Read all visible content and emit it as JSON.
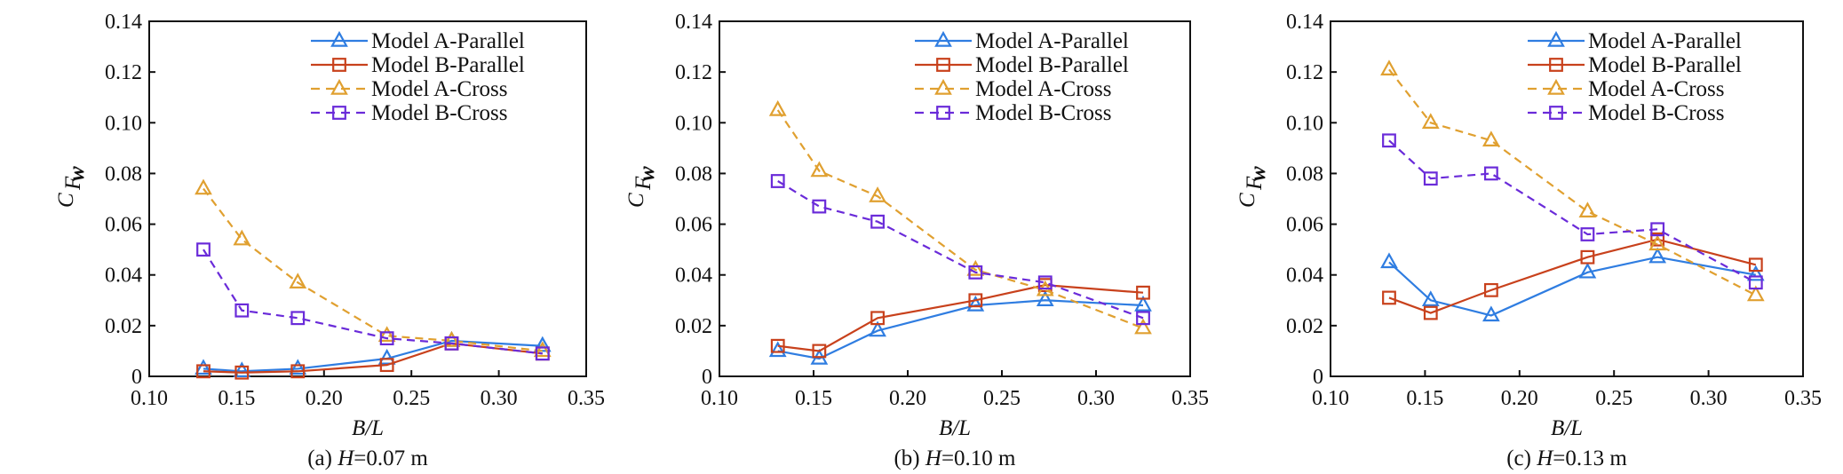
{
  "figure": {
    "series_styles": [
      {
        "name": "Model A-Parallel",
        "color": "#2f7de1",
        "marker": "triangle",
        "dash": "solid"
      },
      {
        "name": "Model B-Parallel",
        "color": "#c8411c",
        "marker": "square",
        "dash": "solid"
      },
      {
        "name": "Model A-Cross",
        "color": "#e0a030",
        "marker": "triangle",
        "dash": "dashed"
      },
      {
        "name": "Model B-Cross",
        "color": "#6a2bd9",
        "marker": "square",
        "dash": "dashed"
      }
    ]
  },
  "chart_data": [
    {
      "type": "line",
      "panel": "a",
      "caption_prefix": "(a)",
      "caption_var": "H",
      "caption_value": "=0.07 m",
      "xlabel": "B/L",
      "ylabel": "C",
      "ylabel_sub": "F",
      "ylabel_subsub": "w",
      "xlim": [
        0.1,
        0.35
      ],
      "ylim": [
        0,
        0.14
      ],
      "xticks": [
        "0.10",
        "0.15",
        "0.20",
        "0.25",
        "0.30",
        "0.35"
      ],
      "yticks": [
        "0",
        "0.02",
        "0.04",
        "0.06",
        "0.08",
        "0.10",
        "0.12",
        "0.14"
      ],
      "legend_position": "top-right",
      "x": [
        0.131,
        0.153,
        0.185,
        0.236,
        0.273,
        0.325
      ],
      "series": [
        {
          "name": "Model A-Parallel",
          "values": [
            0.003,
            0.002,
            0.003,
            0.007,
            0.014,
            0.012
          ]
        },
        {
          "name": "Model B-Parallel",
          "values": [
            0.002,
            0.0015,
            0.002,
            0.0045,
            0.013,
            0.009
          ]
        },
        {
          "name": "Model A-Cross",
          "values": [
            0.074,
            0.054,
            0.037,
            0.016,
            0.014,
            0.01
          ]
        },
        {
          "name": "Model B-Cross",
          "values": [
            0.05,
            0.026,
            0.023,
            0.015,
            0.013,
            0.009
          ]
        }
      ]
    },
    {
      "type": "line",
      "panel": "b",
      "caption_prefix": "(b)",
      "caption_var": "H",
      "caption_value": "=0.10 m",
      "xlabel": "B/L",
      "ylabel": "C",
      "ylabel_sub": "F",
      "ylabel_subsub": "w",
      "xlim": [
        0.1,
        0.35
      ],
      "ylim": [
        0,
        0.14
      ],
      "xticks": [
        "0.10",
        "0.15",
        "0.20",
        "0.25",
        "0.30",
        "0.35"
      ],
      "yticks": [
        "0",
        "0.02",
        "0.04",
        "0.06",
        "0.08",
        "0.10",
        "0.12",
        "0.14"
      ],
      "legend_position": "top-right",
      "x": [
        0.131,
        0.153,
        0.184,
        0.236,
        0.273,
        0.325
      ],
      "series": [
        {
          "name": "Model A-Parallel",
          "values": [
            0.01,
            0.007,
            0.018,
            0.028,
            0.03,
            0.028
          ]
        },
        {
          "name": "Model B-Parallel",
          "values": [
            0.012,
            0.01,
            0.023,
            0.03,
            0.036,
            0.033
          ]
        },
        {
          "name": "Model A-Cross",
          "values": [
            0.105,
            0.081,
            0.071,
            0.042,
            0.034,
            0.019
          ]
        },
        {
          "name": "Model B-Cross",
          "values": [
            0.077,
            0.067,
            0.061,
            0.041,
            0.037,
            0.023
          ]
        }
      ]
    },
    {
      "type": "line",
      "panel": "c",
      "caption_prefix": "(c)",
      "caption_var": "H",
      "caption_value": "=0.13 m",
      "xlabel": "B/L",
      "ylabel": "C",
      "ylabel_sub": "F",
      "ylabel_subsub": "w",
      "xlim": [
        0.1,
        0.35
      ],
      "ylim": [
        0,
        0.14
      ],
      "xticks": [
        "0.10",
        "0.15",
        "0.20",
        "0.25",
        "0.30",
        "0.35"
      ],
      "yticks": [
        "0",
        "0.02",
        "0.04",
        "0.06",
        "0.08",
        "0.10",
        "0.12",
        "0.14"
      ],
      "legend_position": "top-right",
      "x": [
        0.131,
        0.153,
        0.185,
        0.236,
        0.273,
        0.325
      ],
      "series": [
        {
          "name": "Model A-Parallel",
          "values": [
            0.045,
            0.03,
            0.024,
            0.041,
            0.047,
            0.04
          ]
        },
        {
          "name": "Model B-Parallel",
          "values": [
            0.031,
            0.025,
            0.034,
            0.047,
            0.054,
            0.044
          ]
        },
        {
          "name": "Model A-Cross",
          "values": [
            0.121,
            0.1,
            0.093,
            0.065,
            0.052,
            0.032
          ]
        },
        {
          "name": "Model B-Cross",
          "values": [
            0.093,
            0.078,
            0.08,
            0.056,
            0.058,
            0.037
          ]
        }
      ]
    }
  ]
}
